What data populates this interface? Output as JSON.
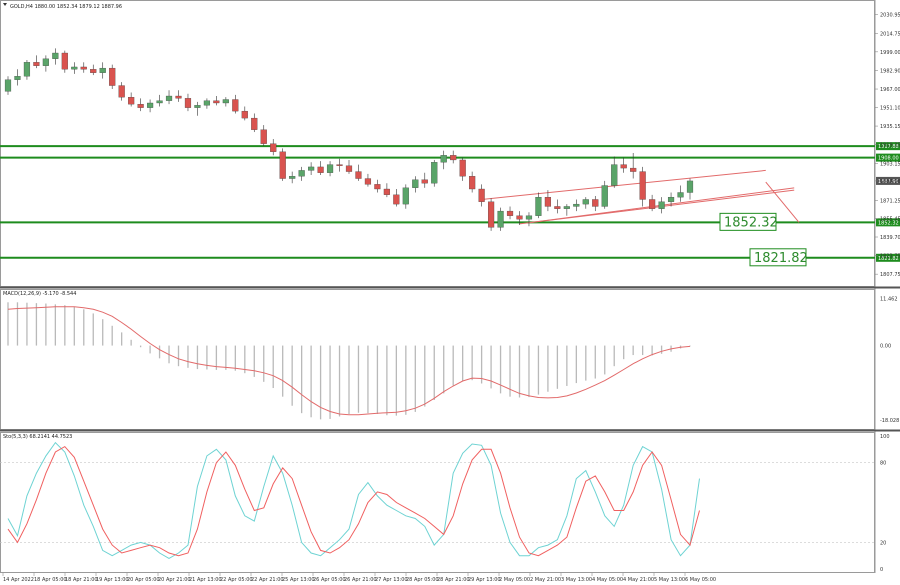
{
  "header": {
    "symbol_line": "GOLD,H4  1880.00 1852.34 1879.12 1887.96"
  },
  "colors": {
    "bull": "#5aa469",
    "bear": "#d9534f",
    "level": "#1e8c1e",
    "channel": "#e26a6a",
    "macd_hist": "#b9b9b9",
    "macd_signal": "#e26a6a",
    "stoch_main": "#6ed3d3",
    "stoch_signal": "#f06060",
    "tag_bg": "#1e8c1e"
  },
  "chart_data": [
    {
      "type": "candlestick",
      "title": "",
      "symbol": "GOLD",
      "timeframe": "H4",
      "ohlc_text": "1880.00 1852.34 1879.12 1887.96",
      "x_tick_labels": [
        "14 Apr 2022",
        "18 Apr 05:00",
        "18 Apr 21:00",
        "19 Apr 13:00",
        "20 Apr 05:00",
        "20 Apr 21:00",
        "21 Apr 13:00",
        "22 Apr 05:00",
        "22 Apr 21:00",
        "25 Apr 13:00",
        "26 Apr 05:00",
        "26 Apr 21:00",
        "27 Apr 13:00",
        "28 Apr 05:00",
        "28 Apr 21:00",
        "29 Apr 13:00",
        "2 May 05:00",
        "2 May 21:00",
        "3 May 13:00",
        "4 May 05:00",
        "4 May 21:00",
        "5 May 13:00",
        "6 May 05:00"
      ],
      "y_tick_labels": [
        "2030.95",
        "2014.75",
        "1999.00",
        "1982.90",
        "1967.00",
        "1951.10",
        "1935.15",
        "1919.35",
        "1903.15",
        "1887.96",
        "1871.25",
        "1855.45",
        "1839.70",
        "1823.75",
        "1807.75"
      ],
      "ylim": [
        1801,
        2035
      ],
      "levels": [
        {
          "value": 1917.88,
          "label": "1917.88"
        },
        {
          "value": 1908.0,
          "label": "1908.00"
        },
        {
          "value": 1852.32,
          "label": "1852.32"
        },
        {
          "value": 1821.82,
          "label": "1821.82"
        }
      ],
      "callouts": [
        "1852.32",
        "1821.82"
      ],
      "current_price": "1887.96",
      "candles": [
        [
          1965,
          1978,
          1962,
          1975
        ],
        [
          1975,
          1984,
          1970,
          1978
        ],
        [
          1978,
          1992,
          1975,
          1990
        ],
        [
          1990,
          1996,
          1985,
          1987
        ],
        [
          1987,
          1996,
          1982,
          1993
        ],
        [
          1993,
          2002,
          1988,
          1998
        ],
        [
          1998,
          2000,
          1981,
          1984
        ],
        [
          1984,
          1990,
          1980,
          1986
        ],
        [
          1986,
          1990,
          1981,
          1984
        ],
        [
          1984,
          1988,
          1979,
          1981
        ],
        [
          1981,
          1990,
          1976,
          1985
        ],
        [
          1985,
          1988,
          1967,
          1970
        ],
        [
          1970,
          1973,
          1957,
          1960
        ],
        [
          1960,
          1964,
          1952,
          1954
        ],
        [
          1954,
          1959,
          1948,
          1951
        ],
        [
          1951,
          1958,
          1947,
          1955
        ],
        [
          1955,
          1962,
          1952,
          1957
        ],
        [
          1957,
          1966,
          1954,
          1961
        ],
        [
          1961,
          1966,
          1956,
          1959
        ],
        [
          1959,
          1963,
          1948,
          1951
        ],
        [
          1951,
          1956,
          1944,
          1953
        ],
        [
          1953,
          1959,
          1950,
          1957
        ],
        [
          1957,
          1961,
          1953,
          1955
        ],
        [
          1955,
          1960,
          1952,
          1958
        ],
        [
          1958,
          1962,
          1946,
          1948
        ],
        [
          1948,
          1952,
          1940,
          1942
        ],
        [
          1942,
          1946,
          1930,
          1932
        ],
        [
          1932,
          1936,
          1918,
          1920
        ],
        [
          1920,
          1924,
          1910,
          1913
        ],
        [
          1913,
          1916,
          1888,
          1890
        ],
        [
          1890,
          1896,
          1886,
          1892
        ],
        [
          1892,
          1900,
          1888,
          1897
        ],
        [
          1897,
          1904,
          1893,
          1900
        ],
        [
          1900,
          1905,
          1893,
          1895
        ],
        [
          1895,
          1905,
          1892,
          1902
        ],
        [
          1902,
          1907,
          1896,
          1901
        ],
        [
          1901,
          1906,
          1894,
          1896
        ],
        [
          1896,
          1902,
          1888,
          1890
        ],
        [
          1890,
          1894,
          1883,
          1885
        ],
        [
          1885,
          1889,
          1878,
          1881
        ],
        [
          1881,
          1886,
          1874,
          1876
        ],
        [
          1876,
          1881,
          1866,
          1868
        ],
        [
          1868,
          1885,
          1864,
          1882
        ],
        [
          1882,
          1892,
          1878,
          1889
        ],
        [
          1889,
          1895,
          1882,
          1886
        ],
        [
          1886,
          1906,
          1883,
          1904
        ],
        [
          1904,
          1914,
          1898,
          1910
        ],
        [
          1910,
          1914,
          1903,
          1906
        ],
        [
          1906,
          1908,
          1888,
          1892
        ],
        [
          1892,
          1896,
          1878,
          1881
        ],
        [
          1881,
          1885,
          1866,
          1870
        ],
        [
          1870,
          1873,
          1845,
          1848
        ],
        [
          1848,
          1865,
          1845,
          1862
        ],
        [
          1862,
          1866,
          1855,
          1858
        ],
        [
          1858,
          1862,
          1850,
          1855
        ],
        [
          1855,
          1861,
          1849,
          1858
        ],
        [
          1858,
          1878,
          1856,
          1874
        ],
        [
          1874,
          1880,
          1862,
          1866
        ],
        [
          1866,
          1872,
          1860,
          1864
        ],
        [
          1864,
          1868,
          1858,
          1866
        ],
        [
          1866,
          1872,
          1862,
          1868
        ],
        [
          1868,
          1874,
          1864,
          1872
        ],
        [
          1872,
          1875,
          1862,
          1866
        ],
        [
          1866,
          1888,
          1864,
          1884
        ],
        [
          1884,
          1909,
          1882,
          1902
        ],
        [
          1902,
          1908,
          1895,
          1899
        ],
        [
          1899,
          1912,
          1890,
          1896
        ],
        [
          1896,
          1900,
          1866,
          1872
        ],
        [
          1872,
          1876,
          1862,
          1864
        ],
        [
          1864,
          1874,
          1860,
          1870
        ],
        [
          1870,
          1878,
          1866,
          1874
        ],
        [
          1874,
          1884,
          1870,
          1878
        ],
        [
          1878,
          1890,
          1872,
          1887.96
        ]
      ],
      "channel_lines": [
        {
          "from": [
            50,
            1872
          ],
          "to": [
            80,
            1897
          ]
        },
        {
          "from": [
            55,
            1852
          ],
          "to": [
            83,
            1882
          ]
        },
        {
          "from": [
            54,
            1851
          ],
          "to": [
            83,
            1880
          ]
        }
      ],
      "projection": {
        "from": [
          80,
          1887
        ],
        "to": [
          83.5,
          1852.32
        ]
      }
    },
    {
      "type": "bar_line",
      "title": "MACD(12,26,9) -5.170 -8.544",
      "y_tick_labels": [
        "11.462",
        "0.00",
        "-18.028"
      ],
      "ylim": [
        -20,
        13
      ],
      "histogram": [
        10.5,
        10.5,
        10.4,
        10.3,
        10.2,
        10,
        9.8,
        9.4,
        8.8,
        7.8,
        6.4,
        4.8,
        3.2,
        1.4,
        -0.4,
        -1.9,
        -3.1,
        -4.3,
        -5.0,
        -5.4,
        -5.7,
        -5.8,
        -5.9,
        -5.9,
        -6.1,
        -6.7,
        -7.6,
        -8.8,
        -10.3,
        -12.4,
        -14.6,
        -16.4,
        -17.4,
        -17.9,
        -17.8,
        -17.2,
        -16.6,
        -16.3,
        -16.4,
        -16.6,
        -16.9,
        -17.0,
        -16.8,
        -16.1,
        -14.8,
        -13.2,
        -11.6,
        -9.7,
        -8.6,
        -8.4,
        -9.2,
        -10.4,
        -11.6,
        -12.4,
        -12.6,
        -12.5,
        -11.9,
        -11.2,
        -10.5,
        -9.8,
        -9.1,
        -8.5,
        -8.0,
        -7.0,
        -5.0,
        -3.3,
        -2.3,
        -2.3,
        -2.4,
        -2.0,
        -1.5,
        -0.7,
        -0.2
      ],
      "signal_line": [
        8.8,
        9.0,
        9.1,
        9.2,
        9.3,
        9.4,
        9.4,
        9.4,
        9.2,
        8.8,
        8.1,
        7.1,
        5.6,
        4.0,
        2.2,
        0.5,
        -1.0,
        -2.2,
        -3.2,
        -3.9,
        -4.4,
        -4.8,
        -5.1,
        -5.3,
        -5.5,
        -5.8,
        -6.1,
        -6.6,
        -7.3,
        -8.5,
        -10.1,
        -11.9,
        -13.6,
        -15.0,
        -16.0,
        -16.6,
        -16.8,
        -16.8,
        -16.6,
        -16.4,
        -16.3,
        -16.2,
        -15.8,
        -15.2,
        -14.2,
        -12.8,
        -11.2,
        -9.8,
        -8.6,
        -7.9,
        -8.0,
        -8.6,
        -9.6,
        -10.6,
        -11.6,
        -12.2,
        -12.6,
        -12.7,
        -12.6,
        -12.2,
        -11.5,
        -10.6,
        -9.6,
        -8.5,
        -7.2,
        -5.8,
        -4.4,
        -3.2,
        -2.2,
        -1.4,
        -0.8,
        -0.4,
        -0.2
      ]
    },
    {
      "type": "line",
      "title": "Sto(5,3,3) 68.2141 44.7523",
      "y_tick_labels": [
        "100",
        "80",
        "20",
        "0"
      ],
      "ylim": [
        0,
        100
      ],
      "series": [
        {
          "values": [
            38,
            25,
            55,
            72,
            85,
            95,
            88,
            70,
            48,
            32,
            14,
            10,
            14,
            18,
            20,
            18,
            12,
            8,
            12,
            18,
            62,
            85,
            90,
            82,
            55,
            40,
            36,
            62,
            85,
            72,
            48,
            20,
            12,
            10,
            16,
            22,
            30,
            56,
            65,
            55,
            48,
            44,
            40,
            38,
            32,
            18,
            26,
            72,
            87,
            94,
            93,
            78,
            42,
            20,
            10,
            10,
            16,
            18,
            22,
            40,
            68,
            74,
            58,
            40,
            32,
            48,
            78,
            92,
            88,
            60,
            22,
            10,
            18,
            68
          ]
        },
        {
          "values": [
            30,
            20,
            34,
            52,
            72,
            88,
            92,
            84,
            66,
            48,
            30,
            18,
            12,
            14,
            16,
            18,
            16,
            12,
            10,
            12,
            30,
            58,
            80,
            88,
            78,
            60,
            44,
            46,
            64,
            76,
            68,
            48,
            28,
            14,
            12,
            16,
            22,
            34,
            50,
            58,
            56,
            50,
            46,
            42,
            38,
            32,
            26,
            40,
            64,
            82,
            90,
            90,
            72,
            46,
            24,
            12,
            10,
            14,
            18,
            24,
            46,
            66,
            70,
            58,
            44,
            44,
            58,
            78,
            88,
            78,
            52,
            26,
            18,
            44
          ]
        }
      ]
    }
  ]
}
